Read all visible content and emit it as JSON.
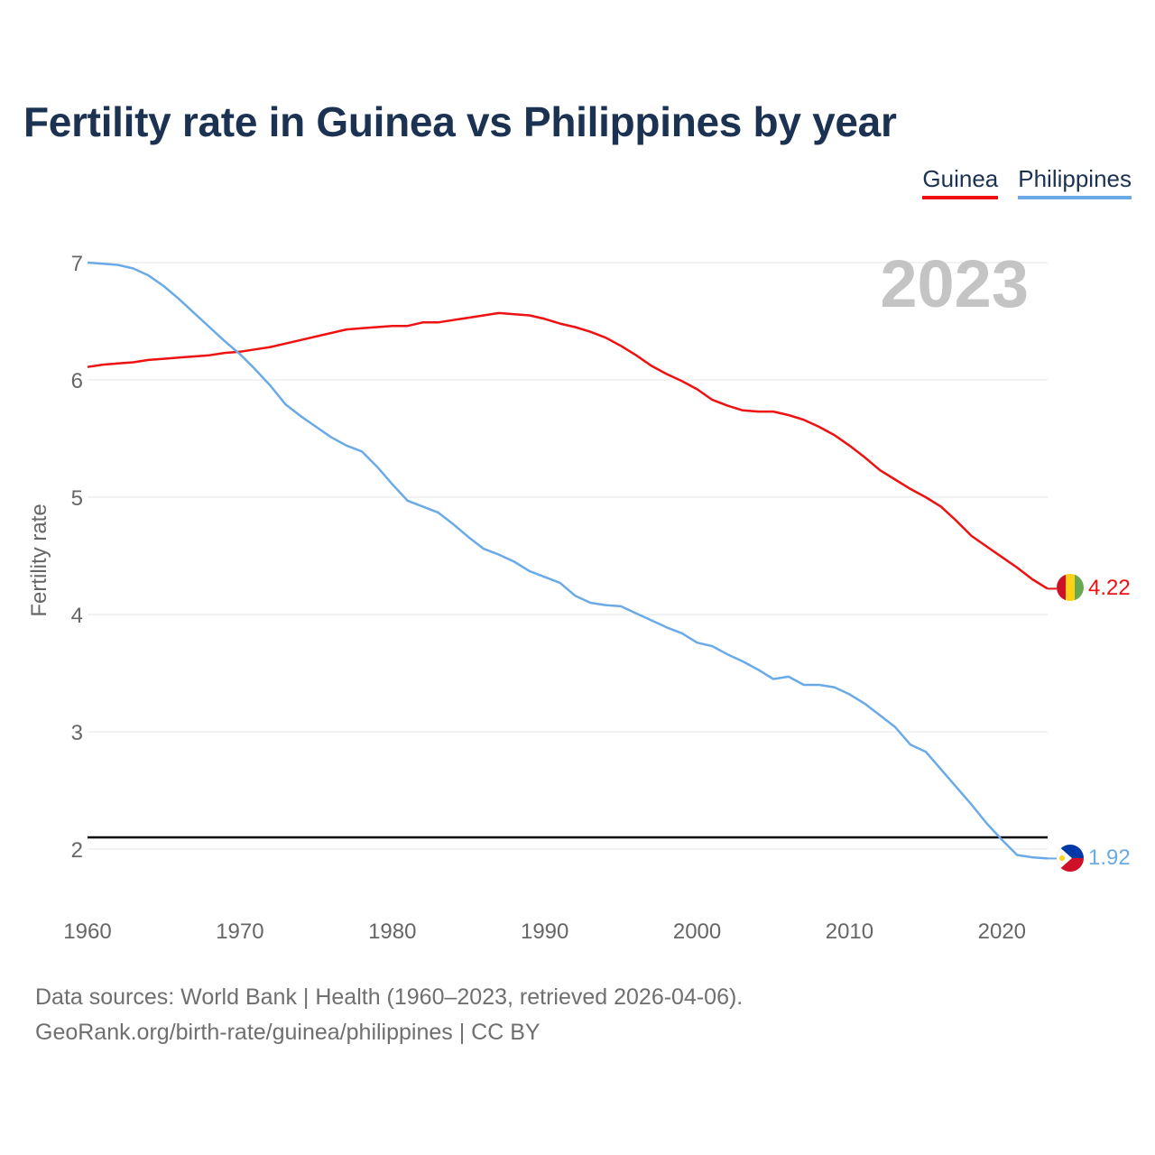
{
  "title": "Fertility rate in Guinea vs Philippines by year",
  "legend": [
    {
      "label": "Guinea",
      "color": "#ee1111"
    },
    {
      "label": "Philippines",
      "color": "#6aaae6"
    }
  ],
  "year_watermark": "2023",
  "footer": {
    "line1": "Data sources: World Bank | Health (1960–2023, retrieved 2026-04-06).",
    "line2": "GeoRank.org/birth-rate/guinea/philippines | CC BY"
  },
  "chart_data": {
    "type": "line",
    "title": "Fertility rate in Guinea vs Philippines by year",
    "xlabel": "",
    "ylabel": "Fertility rate",
    "xlim": [
      1960,
      2023
    ],
    "ylim": [
      1.5,
      7.1
    ],
    "xticks": [
      1960,
      1970,
      1980,
      1990,
      2000,
      2010,
      2020
    ],
    "yticks": [
      2,
      3,
      4,
      5,
      6,
      7
    ],
    "grid": true,
    "reference_line": {
      "y": 2.1,
      "color": "#000000"
    },
    "x": [
      1960,
      1961,
      1962,
      1963,
      1964,
      1965,
      1966,
      1967,
      1968,
      1969,
      1970,
      1971,
      1972,
      1973,
      1974,
      1975,
      1976,
      1977,
      1978,
      1979,
      1980,
      1981,
      1982,
      1983,
      1984,
      1985,
      1986,
      1987,
      1988,
      1989,
      1990,
      1991,
      1992,
      1993,
      1994,
      1995,
      1996,
      1997,
      1998,
      1999,
      2000,
      2001,
      2002,
      2003,
      2004,
      2005,
      2006,
      2007,
      2008,
      2009,
      2010,
      2011,
      2012,
      2013,
      2014,
      2015,
      2016,
      2017,
      2018,
      2019,
      2020,
      2021,
      2022,
      2023
    ],
    "series": [
      {
        "name": "Guinea",
        "color": "#ee1111",
        "end_label": "4.22",
        "values": [
          6.11,
          6.13,
          6.14,
          6.15,
          6.17,
          6.18,
          6.19,
          6.2,
          6.21,
          6.23,
          6.24,
          6.26,
          6.28,
          6.31,
          6.34,
          6.37,
          6.4,
          6.43,
          6.44,
          6.45,
          6.46,
          6.46,
          6.49,
          6.49,
          6.51,
          6.53,
          6.55,
          6.57,
          6.56,
          6.55,
          6.52,
          6.48,
          6.45,
          6.41,
          6.36,
          6.29,
          6.21,
          6.12,
          6.05,
          5.99,
          5.92,
          5.83,
          5.78,
          5.74,
          5.73,
          5.73,
          5.7,
          5.66,
          5.6,
          5.53,
          5.44,
          5.34,
          5.23,
          5.15,
          5.07,
          5.0,
          4.92,
          4.8,
          4.67,
          4.58,
          4.49,
          4.4,
          4.3,
          4.22
        ]
      },
      {
        "name": "Philippines",
        "color": "#6aaae6",
        "end_label": "1.92",
        "values": [
          7.0,
          6.99,
          6.98,
          6.95,
          6.89,
          6.8,
          6.69,
          6.57,
          6.45,
          6.33,
          6.22,
          6.09,
          5.95,
          5.79,
          5.69,
          5.6,
          5.51,
          5.44,
          5.39,
          5.26,
          5.11,
          4.97,
          4.92,
          4.87,
          4.77,
          4.66,
          4.56,
          4.51,
          4.45,
          4.37,
          4.32,
          4.27,
          4.16,
          4.1,
          4.08,
          4.07,
          4.01,
          3.95,
          3.89,
          3.84,
          3.76,
          3.73,
          3.66,
          3.6,
          3.53,
          3.45,
          3.47,
          3.4,
          3.4,
          3.38,
          3.32,
          3.24,
          3.14,
          3.04,
          2.89,
          2.83,
          2.68,
          2.53,
          2.38,
          2.22,
          2.08,
          1.95,
          1.93,
          1.92
        ]
      }
    ]
  }
}
